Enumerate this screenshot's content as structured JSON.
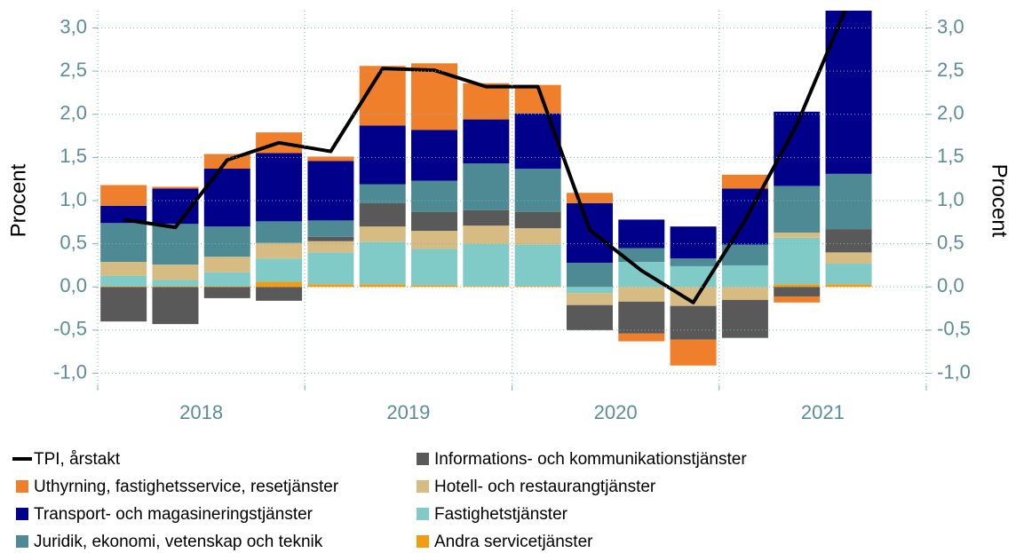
{
  "chart_data": {
    "type": "stacked_bar_line",
    "ylabel": "Procent",
    "y2label": "Procent",
    "categories": [
      null,
      null,
      null,
      null,
      null,
      null,
      null,
      null,
      null,
      null,
      null,
      null,
      null,
      null,
      null,
      null
    ],
    "year_labels": [
      "2018",
      "2019",
      "2020",
      "2021"
    ],
    "ylim": [
      -1.2,
      3.2
    ],
    "yticks": [
      {
        "value": -1,
        "label": "-1,0"
      },
      {
        "value": -0.5,
        "label": "-0,5"
      },
      {
        "value": 0,
        "label": "0,0"
      },
      {
        "value": 0.5,
        "label": "0,5"
      },
      {
        "value": 1,
        "label": "1,0"
      },
      {
        "value": 1.5,
        "label": "1,5"
      },
      {
        "value": 2,
        "label": "2,0"
      },
      {
        "value": 2.5,
        "label": "2,5"
      },
      {
        "value": 3,
        "label": "3,0"
      }
    ],
    "grid": true,
    "line": {
      "name": "TPI, årstakt",
      "color": "#000000",
      "values": [
        0.78,
        0.69,
        1.47,
        1.67,
        1.57,
        2.53,
        2.51,
        2.32,
        2.32,
        0.66,
        0.19,
        -0.18,
        0.77,
        1.88,
        3.3,
        null
      ]
    },
    "series": [
      {
        "name": "Uthyrning, fastighetsservice, resetjänster",
        "color": "#f07f2c",
        "values": [
          0.24,
          0.02,
          0.17,
          0.24,
          0.05,
          0.69,
          0.77,
          0.42,
          0.33,
          0.12,
          -0.09,
          -0.3,
          0.16,
          -0.07,
          0,
          null
        ]
      },
      {
        "name": "Transport- och magasineringstjänster",
        "color": "#00008b",
        "values": [
          0.2,
          0.41,
          0.67,
          0.79,
          0.69,
          0.68,
          0.59,
          0.51,
          0.64,
          0.69,
          0.33,
          0.37,
          0.65,
          0.86,
          2.0,
          null
        ]
      },
      {
        "name": "Juridik, ekonomi, vetenskap och teknik",
        "color": "#4e8a94",
        "values": [
          0.45,
          0.47,
          0.35,
          0.25,
          0.19,
          0.22,
          0.36,
          0.54,
          0.5,
          0.28,
          0.16,
          0.09,
          0.24,
          0.54,
          0.64,
          null
        ]
      },
      {
        "name": "Informations- och kommunikationstjänster",
        "color": "#595959",
        "values": [
          -0.4,
          -0.43,
          -0.13,
          -0.16,
          0.05,
          0.27,
          0.22,
          0.18,
          0.19,
          -0.29,
          -0.37,
          -0.39,
          -0.44,
          -0.11,
          0.27,
          null
        ]
      },
      {
        "name": "Hotell- och restaurangtjänster",
        "color": "#d6bc82",
        "values": [
          0.16,
          0.18,
          0.18,
          0.18,
          0.13,
          0.18,
          0.21,
          0.21,
          0.19,
          -0.14,
          -0.17,
          -0.22,
          -0.15,
          0.06,
          0.13,
          null
        ]
      },
      {
        "name": "Fastighetstjänster",
        "color": "#80cbc8",
        "values": [
          0.12,
          0.07,
          0.16,
          0.27,
          0.37,
          0.49,
          0.42,
          0.49,
          0.48,
          -0.07,
          0.29,
          0.24,
          0.25,
          0.54,
          0.24,
          null
        ]
      },
      {
        "name": "Andra servicetjänster",
        "color": "#f39c12",
        "values": [
          0.01,
          0.01,
          0.01,
          0.06,
          0.03,
          0.03,
          0.02,
          0.01,
          0.01,
          0,
          0,
          0,
          0,
          0.03,
          0.03,
          null
        ]
      }
    ]
  }
}
